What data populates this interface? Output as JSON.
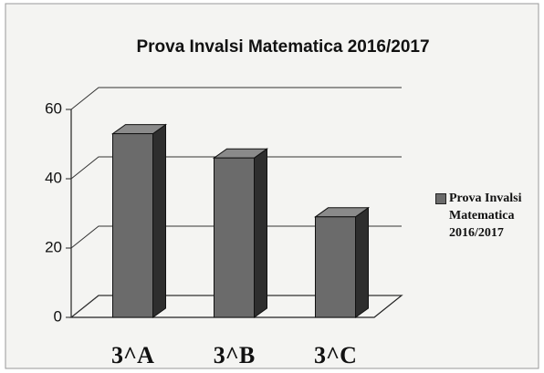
{
  "chart_data": {
    "type": "bar3d",
    "title": "Prova Invalsi Matematica 2016/2017",
    "categories": [
      "3^A",
      "3^B",
      "3^C"
    ],
    "series": [
      {
        "name": "Prova Invalsi Matematica 2016/2017",
        "color": "#6b6b6b",
        "values": [
          53,
          46,
          29
        ]
      }
    ],
    "ylim": [
      0,
      60
    ],
    "yticks": [
      0,
      20,
      40,
      60
    ],
    "grid": true,
    "legend": "right"
  }
}
